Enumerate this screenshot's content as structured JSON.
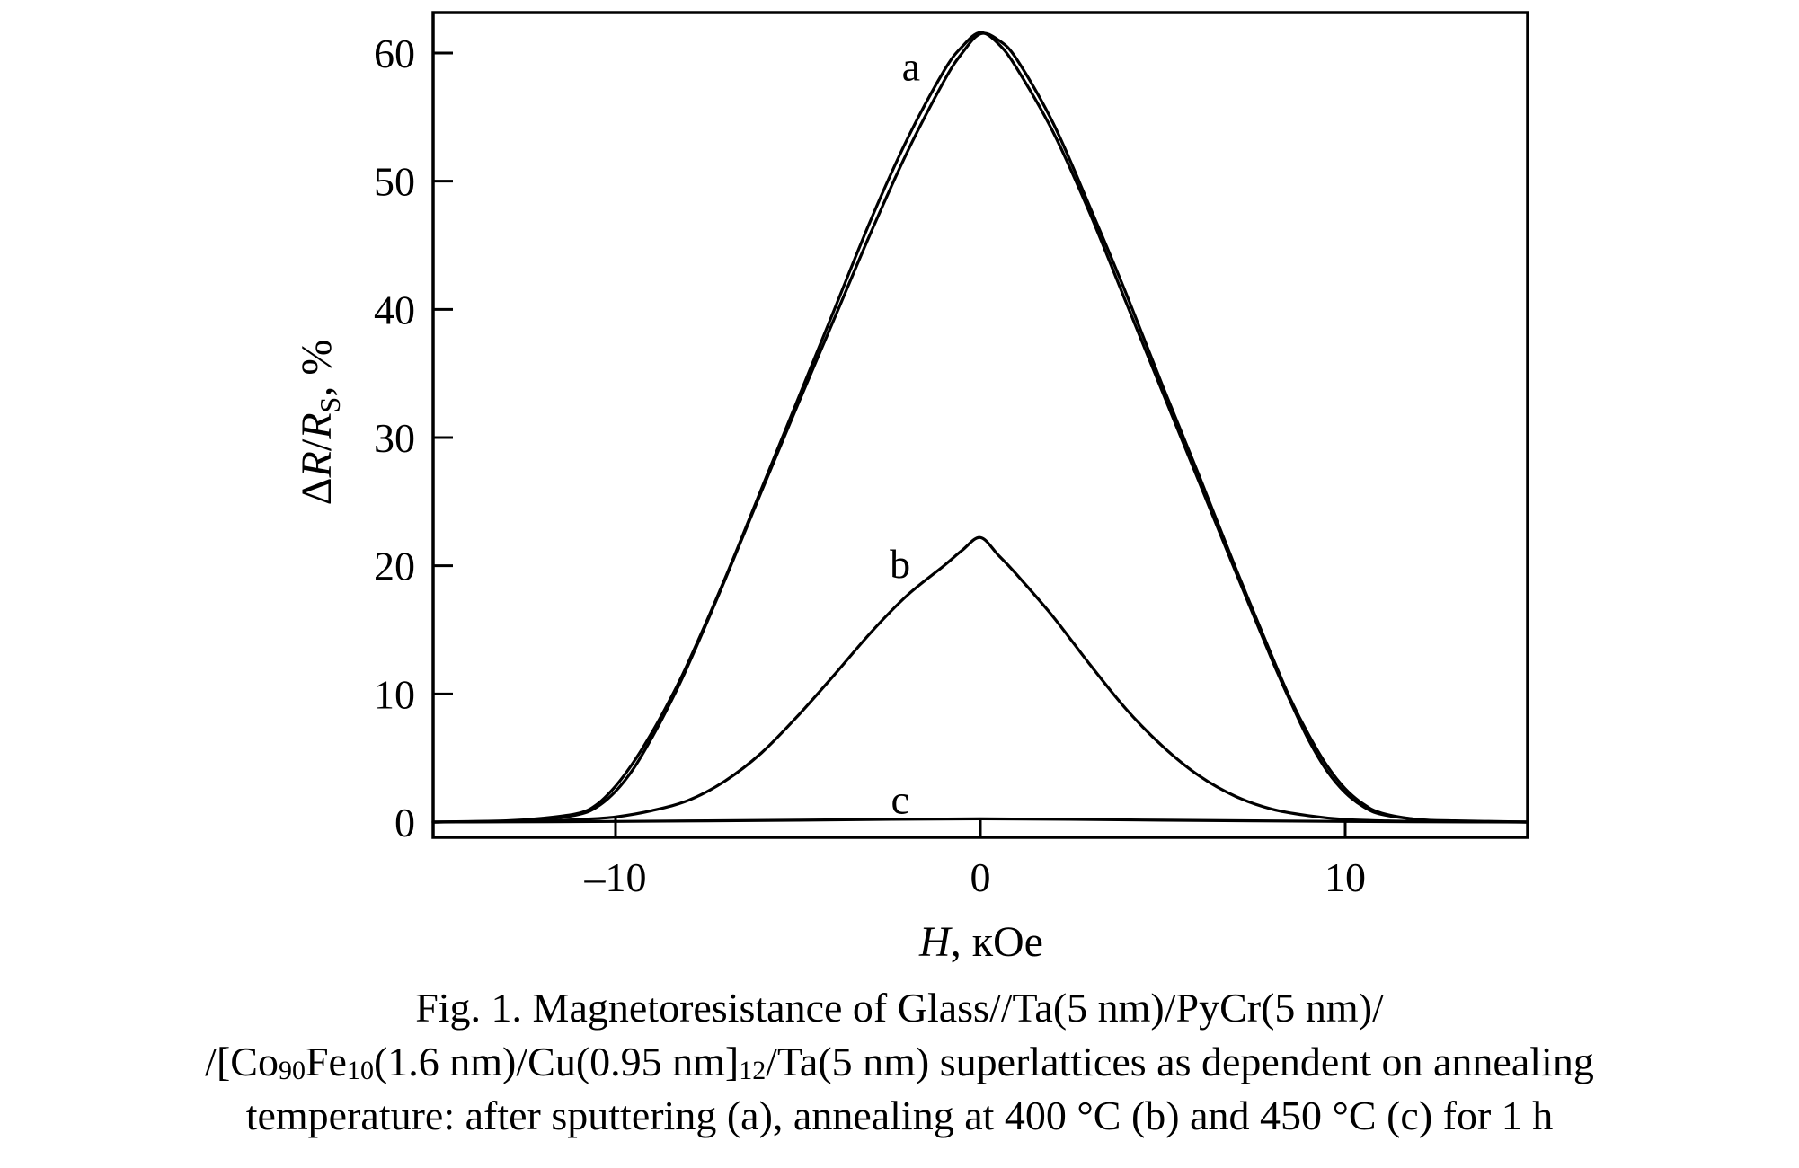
{
  "chart_data": {
    "type": "line",
    "xlabel": {
      "var": "H",
      "unit": ", кOe"
    },
    "ylabel": {
      "delta": "Δ",
      "r": "R",
      "slash": "/",
      "rs": "R",
      "sub": "S",
      "unit": ", %"
    },
    "xlim": [
      -15,
      15
    ],
    "ylim": [
      -1,
      62
    ],
    "xticks": [
      -10,
      0,
      10
    ],
    "xtick_labels": [
      "–10",
      "0",
      "10"
    ],
    "yticks": [
      0,
      10,
      20,
      30,
      40,
      50,
      60
    ],
    "ytick_labels": [
      "0",
      "10",
      "20",
      "30",
      "40",
      "50",
      "60"
    ],
    "grid": false,
    "legend": "none",
    "curve_labels": [
      {
        "text": "a",
        "x": -1.9,
        "y": 59
      },
      {
        "text": "b",
        "x": -2.2,
        "y": 20.2
      },
      {
        "text": "c",
        "x": -2.2,
        "y": 1.8
      }
    ],
    "series": [
      {
        "label": "a",
        "branch_down": {
          "x": [
            -15,
            -13,
            -12,
            -11,
            -10.5,
            -10,
            -9.5,
            -9,
            -8.5,
            -8,
            -7,
            -6,
            -5,
            -4,
            -3,
            -2,
            -1,
            -0.5,
            0,
            0.5,
            1,
            2,
            3,
            4,
            5,
            6,
            7,
            8,
            8.5,
            9,
            9.5,
            10,
            10.5,
            11,
            12,
            13,
            15
          ],
          "y": [
            0,
            0.1,
            0.3,
            0.7,
            1.4,
            2.8,
            4.7,
            7.0,
            9.6,
            12.5,
            19.0,
            26.0,
            33.0,
            40.0,
            47.0,
            53.3,
            58.6,
            60.5,
            61.6,
            60.7,
            58.8,
            53.8,
            47.5,
            40.5,
            33.5,
            26.5,
            19.5,
            12.6,
            9.4,
            6.4,
            4.0,
            2.3,
            1.2,
            0.6,
            0.2,
            0.05,
            0
          ]
        },
        "branch_up": {
          "x": [
            -15,
            -13,
            -12,
            -11,
            -10.5,
            -10,
            -9.5,
            -9,
            -8.5,
            -8,
            -7,
            -6,
            -5,
            -4,
            -3,
            -2,
            -1,
            -0.5,
            0,
            0.5,
            1,
            2,
            3,
            4,
            5,
            6,
            7,
            8,
            8.5,
            9,
            9.5,
            10,
            10.5,
            11,
            12,
            13,
            15
          ],
          "y": [
            0,
            0.05,
            0.2,
            0.6,
            1.2,
            2.4,
            4.2,
            6.6,
            9.3,
            12.3,
            18.9,
            25.8,
            32.6,
            39.3,
            46.0,
            52.3,
            57.8,
            60.0,
            61.5,
            61.0,
            59.5,
            54.5,
            48.0,
            41.2,
            34.0,
            27.0,
            19.8,
            12.9,
            9.6,
            6.8,
            4.4,
            2.6,
            1.4,
            0.7,
            0.2,
            0.1,
            0
          ]
        }
      },
      {
        "label": "b",
        "x": [
          -15,
          -12,
          -11,
          -10,
          -9,
          -8,
          -7,
          -6,
          -5,
          -4,
          -3,
          -2,
          -1,
          -0.5,
          0,
          0.5,
          1,
          2,
          3,
          4,
          5,
          6,
          7,
          8,
          9,
          10,
          11,
          12,
          15
        ],
        "y": [
          0,
          0.1,
          0.2,
          0.4,
          0.9,
          1.7,
          3.2,
          5.4,
          8.3,
          11.5,
          14.8,
          17.7,
          20.0,
          21.2,
          22.2,
          20.8,
          19.3,
          16.0,
          12.3,
          8.8,
          5.9,
          3.6,
          2.0,
          1.0,
          0.5,
          0.2,
          0.1,
          0.05,
          0
        ]
      },
      {
        "label": "c",
        "x": [
          -15,
          -10,
          -5,
          0,
          5,
          10,
          15
        ],
        "y": [
          0,
          0.05,
          0.15,
          0.25,
          0.15,
          0.05,
          0
        ]
      }
    ]
  },
  "caption": {
    "line1": "Fig. 1. Magnetoresistance of Glass//Ta(5 nm)/PyCr(5 nm)/",
    "line2_part1": "/[Co",
    "line2_sub1": "90",
    "line2_part2": "Fe",
    "line2_sub2": "10",
    "line2_part3": "(1.6 nm)/Cu(0.95 nm]",
    "line2_sub3": "12",
    "line2_part4": "/Ta(5 nm) superlattices as dependent on annealing",
    "line3": "temperature: after sputtering (a), annealing at 400 °C (b) and 450 °C (c) for 1 h"
  }
}
